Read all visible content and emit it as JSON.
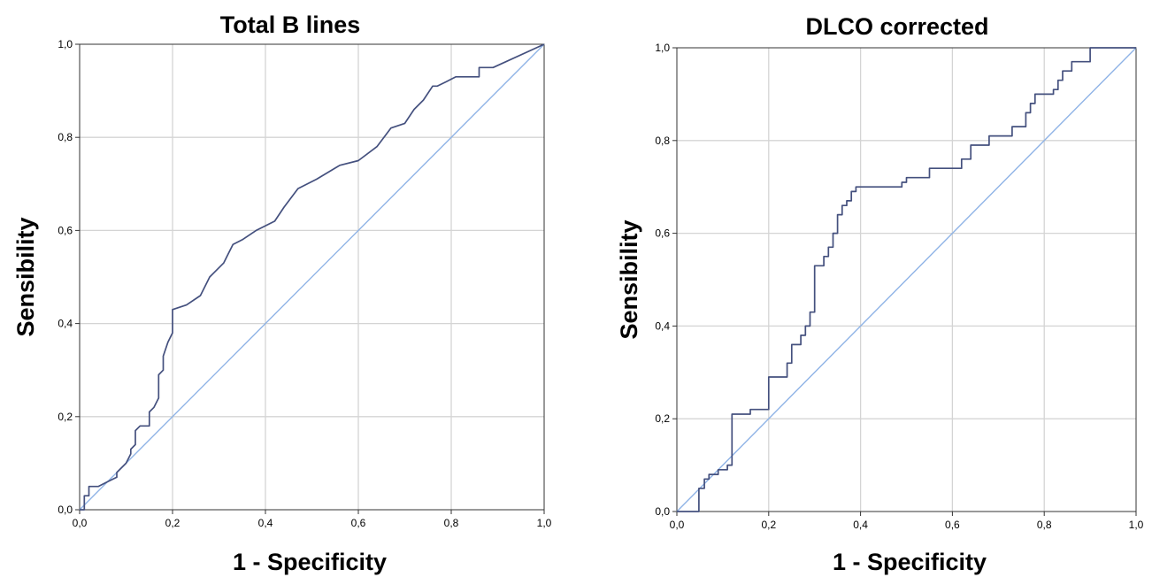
{
  "chart_data": [
    {
      "type": "line",
      "title": "Total B lines",
      "xlabel": "1 - Specificity",
      "ylabel": "Sensibility",
      "xlim": [
        0,
        1
      ],
      "ylim": [
        0,
        1
      ],
      "xticks": [
        "0,0",
        "0,2",
        "0,4",
        "0,6",
        "0,8",
        "1,0"
      ],
      "yticks": [
        "0,0",
        "0,2",
        "0,4",
        "0,6",
        "0,8",
        "1,0"
      ],
      "grid": true,
      "series": [
        {
          "role": "roc",
          "color": "#44507e",
          "x": [
            0,
            0.01,
            0.01,
            0.02,
            0.02,
            0.04,
            0.06,
            0.08,
            0.08,
            0.1,
            0.11,
            0.11,
            0.12,
            0.12,
            0.13,
            0.15,
            0.15,
            0.16,
            0.17,
            0.17,
            0.18,
            0.18,
            0.19,
            0.2,
            0.2,
            0.23,
            0.26,
            0.28,
            0.29,
            0.31,
            0.32,
            0.33,
            0.35,
            0.38,
            0.42,
            0.44,
            0.47,
            0.51,
            0.56,
            0.6,
            0.64,
            0.67,
            0.7,
            0.72,
            0.74,
            0.76,
            0.77,
            0.79,
            0.79,
            0.81,
            0.82,
            0.82,
            0.86,
            0.86,
            0.89,
            1.0
          ],
          "y": [
            0,
            0,
            0.03,
            0.03,
            0.05,
            0.05,
            0.06,
            0.07,
            0.08,
            0.1,
            0.12,
            0.13,
            0.14,
            0.17,
            0.18,
            0.18,
            0.21,
            0.22,
            0.24,
            0.29,
            0.3,
            0.33,
            0.36,
            0.38,
            0.43,
            0.44,
            0.46,
            0.5,
            0.51,
            0.53,
            0.55,
            0.57,
            0.58,
            0.6,
            0.62,
            0.65,
            0.69,
            0.71,
            0.74,
            0.75,
            0.78,
            0.82,
            0.83,
            0.86,
            0.88,
            0.91,
            0.91,
            0.92,
            0.92,
            0.93,
            0.93,
            0.93,
            0.93,
            0.95,
            0.95,
            1.0
          ]
        },
        {
          "role": "reference",
          "color": "#8fb3e6",
          "x": [
            0,
            1
          ],
          "y": [
            0,
            1
          ]
        }
      ]
    },
    {
      "type": "line",
      "title": "DLCO corrected",
      "xlabel": "1 - Specificity",
      "ylabel": "Sensibility",
      "xlim": [
        0,
        1
      ],
      "ylim": [
        0,
        1
      ],
      "xticks": [
        "0,0",
        "0,2",
        "0,4",
        "0,6",
        "0,8",
        "1,0"
      ],
      "yticks": [
        "0,0",
        "0,2",
        "0,4",
        "0,6",
        "0,8",
        "1,0"
      ],
      "grid": true,
      "series": [
        {
          "role": "roc",
          "color": "#44507e",
          "x": [
            0,
            0.048,
            0.048,
            0.06,
            0.06,
            0.07,
            0.07,
            0.09,
            0.09,
            0.11,
            0.11,
            0.12,
            0.12,
            0.16,
            0.16,
            0.2,
            0.2,
            0.24,
            0.24,
            0.25,
            0.25,
            0.27,
            0.27,
            0.28,
            0.28,
            0.29,
            0.29,
            0.3,
            0.3,
            0.32,
            0.32,
            0.33,
            0.33,
            0.34,
            0.34,
            0.35,
            0.35,
            0.36,
            0.36,
            0.37,
            0.37,
            0.38,
            0.38,
            0.39,
            0.39,
            0.49,
            0.49,
            0.5,
            0.5,
            0.55,
            0.55,
            0.56,
            0.56,
            0.62,
            0.62,
            0.64,
            0.64,
            0.68,
            0.68,
            0.73,
            0.73,
            0.76,
            0.76,
            0.77,
            0.77,
            0.78,
            0.78,
            0.79,
            0.79,
            0.82,
            0.82,
            0.83,
            0.83,
            0.84,
            0.84,
            0.85,
            0.85,
            0.86,
            0.86,
            0.88,
            0.88,
            0.9,
            0.9,
            1.0
          ],
          "y": [
            0,
            0,
            0.05,
            0.05,
            0.07,
            0.07,
            0.08,
            0.08,
            0.09,
            0.09,
            0.1,
            0.1,
            0.21,
            0.21,
            0.22,
            0.22,
            0.29,
            0.29,
            0.32,
            0.32,
            0.36,
            0.36,
            0.38,
            0.38,
            0.4,
            0.4,
            0.43,
            0.43,
            0.53,
            0.53,
            0.55,
            0.55,
            0.57,
            0.57,
            0.6,
            0.6,
            0.64,
            0.64,
            0.66,
            0.66,
            0.67,
            0.67,
            0.69,
            0.69,
            0.7,
            0.7,
            0.71,
            0.71,
            0.72,
            0.72,
            0.74,
            0.74,
            0.74,
            0.74,
            0.76,
            0.76,
            0.79,
            0.79,
            0.81,
            0.81,
            0.83,
            0.83,
            0.86,
            0.86,
            0.88,
            0.88,
            0.9,
            0.9,
            0.9,
            0.9,
            0.91,
            0.91,
            0.93,
            0.93,
            0.95,
            0.95,
            0.95,
            0.95,
            0.97,
            0.97,
            0.97,
            0.97,
            1.0,
            1.0
          ]
        },
        {
          "role": "reference",
          "color": "#8fb3e6",
          "x": [
            0,
            1
          ],
          "y": [
            0,
            1
          ]
        }
      ]
    }
  ]
}
